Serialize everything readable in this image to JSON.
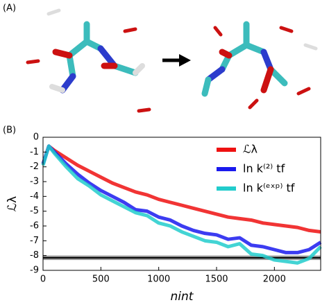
{
  "panel_labels": [
    "(A)",
    "(B)"
  ],
  "chart_data": {
    "type": "line",
    "xlabel": "nint",
    "ylabel": "ℒλ",
    "x": [
      0,
      50,
      100,
      200,
      300,
      400,
      500,
      600,
      700,
      800,
      900,
      1000,
      1100,
      1200,
      1300,
      1400,
      1500,
      1600,
      1700,
      1800,
      1900,
      2000,
      2100,
      2200,
      2300,
      2400
    ],
    "series": [
      {
        "name": "ℒλ",
        "color": "#ee1111",
        "values": [
          -1.8,
          -0.6,
          -0.9,
          -1.4,
          -1.9,
          -2.3,
          -2.7,
          -3.1,
          -3.4,
          -3.7,
          -3.9,
          -4.2,
          -4.4,
          -4.6,
          -4.8,
          -5.0,
          -5.2,
          -5.4,
          -5.5,
          -5.6,
          -5.8,
          -5.9,
          -6.0,
          -6.1,
          -6.3,
          -6.4
        ]
      },
      {
        "name": "ln k⁽²⁾ tf",
        "color": "#1a1aee",
        "values": [
          -1.8,
          -0.6,
          -1.0,
          -1.8,
          -2.5,
          -3.1,
          -3.6,
          -4.0,
          -4.4,
          -4.9,
          -5.0,
          -5.4,
          -5.6,
          -6.0,
          -6.3,
          -6.5,
          -6.6,
          -6.9,
          -6.8,
          -7.3,
          -7.4,
          -7.6,
          -7.8,
          -7.8,
          -7.6,
          -7.1
        ]
      },
      {
        "name": "ln k⁽ᵉˣᵖ⁾ tf",
        "color": "#22cccc",
        "values": [
          -1.9,
          -0.6,
          -1.1,
          -2.0,
          -2.8,
          -3.3,
          -3.9,
          -4.3,
          -4.7,
          -5.1,
          -5.3,
          -5.8,
          -6.0,
          -6.4,
          -6.7,
          -7.0,
          -7.1,
          -7.4,
          -7.2,
          -7.9,
          -8.0,
          -8.3,
          -8.4,
          -8.5,
          -8.2,
          -7.4
        ]
      }
    ],
    "reference_line": -8.15,
    "reference_band": [
      -8.3,
      -8.0
    ],
    "xlim": [
      0,
      2400
    ],
    "ylim": [
      -9,
      0
    ],
    "xticks": [
      0,
      500,
      1000,
      1500,
      2000
    ],
    "yticks": [
      0,
      -1,
      -2,
      -3,
      -4,
      -5,
      -6,
      -7,
      -8,
      -9
    ],
    "legend": "upper right"
  }
}
